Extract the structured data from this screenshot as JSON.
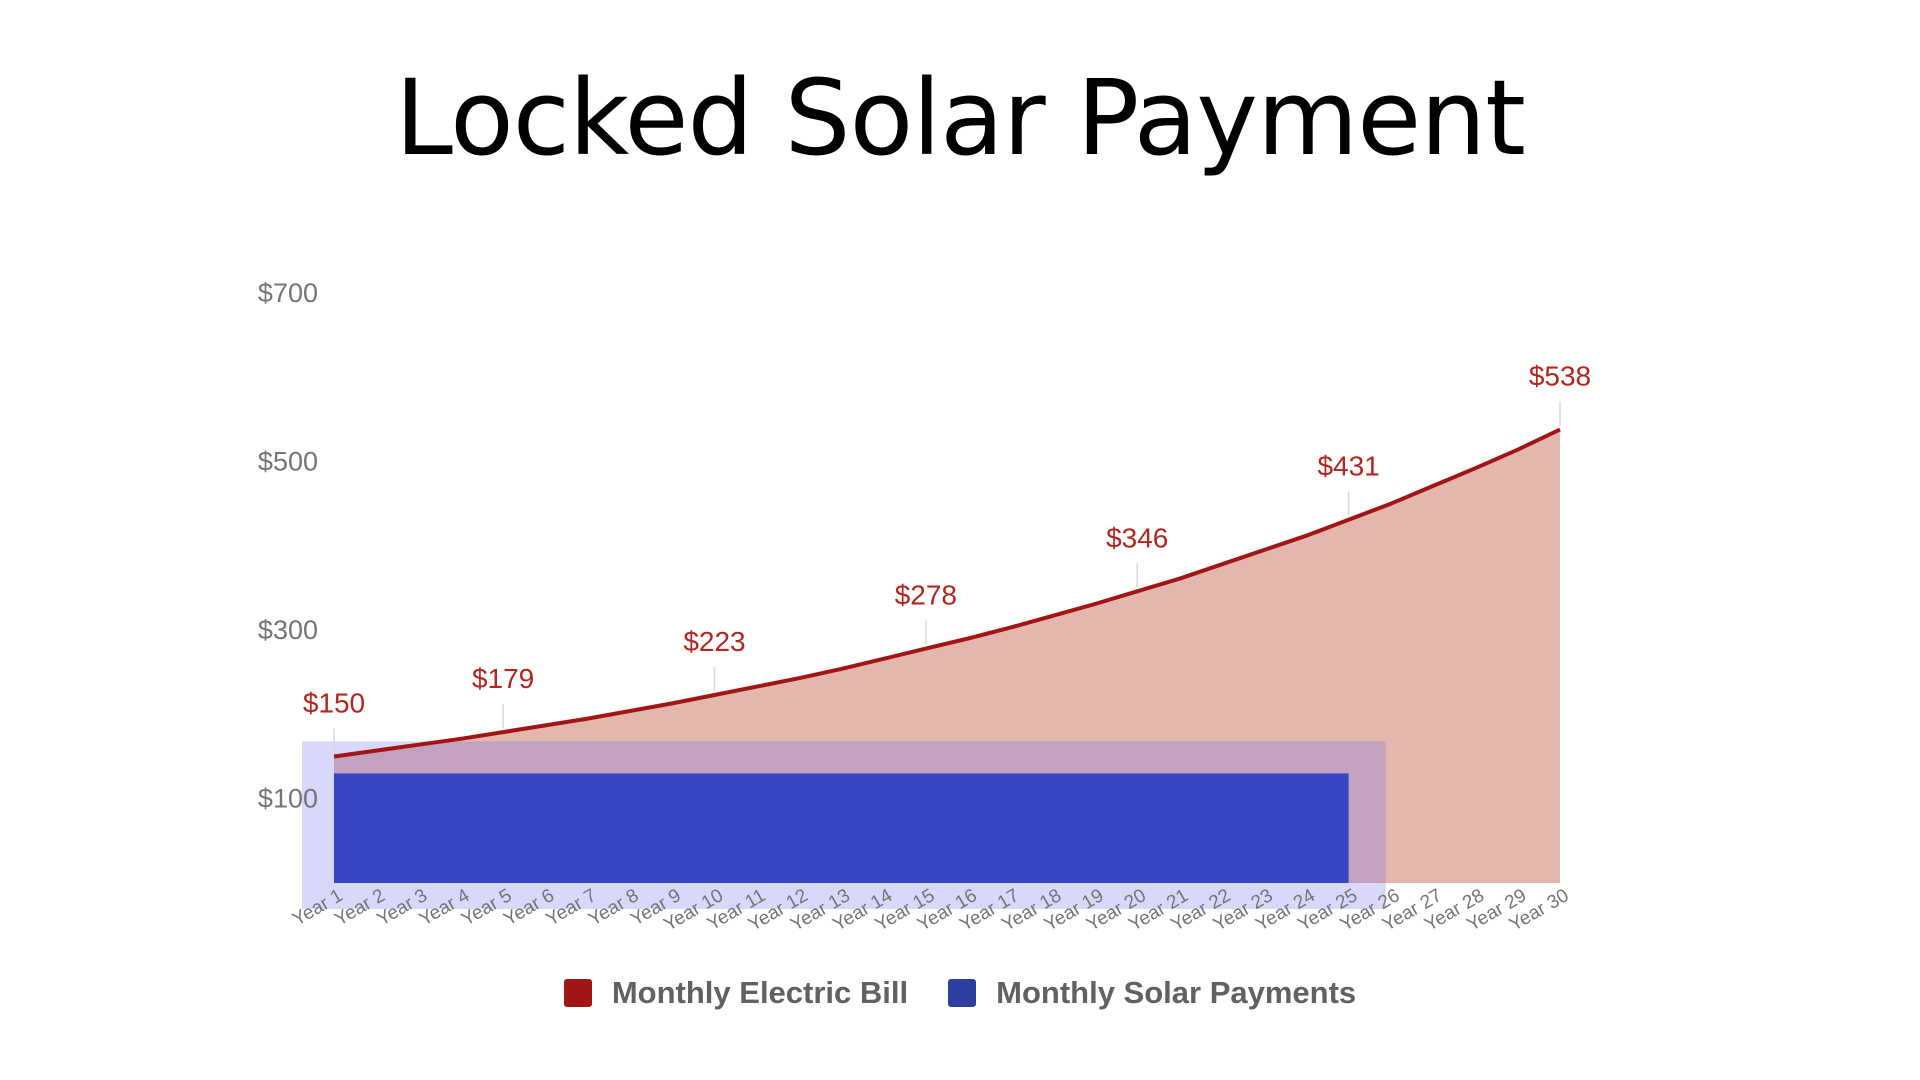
{
  "title": "Locked Solar Payment",
  "colors": {
    "electric": "#a31515",
    "electric_fill": "#e3b6ae",
    "solar": "#3747c3",
    "solar_legend": "#2f3f9e",
    "solar_box": "#b9b9f4",
    "solar_box_overlap": "#c09ccb",
    "label": "#b3261e",
    "axis_text": "#757575"
  },
  "legend": [
    {
      "label": "Monthly Electric Bill",
      "color": "#a31515"
    },
    {
      "label": "Monthly Solar Payments",
      "color": "#2f3f9e"
    }
  ],
  "chart_data": {
    "type": "area",
    "title": "Locked Solar Payment",
    "xlabel": "",
    "ylabel": "",
    "ylim": [
      0,
      700
    ],
    "y_ticks": [
      "$100",
      "$300",
      "$500",
      "$700"
    ],
    "y_tick_values": [
      100,
      300,
      500,
      700
    ],
    "categories": [
      "Year 1",
      "Year 2",
      "Year 3",
      "Year 4",
      "Year 5",
      "Year 6",
      "Year 7",
      "Year 8",
      "Year 9",
      "Year 10",
      "Year 11",
      "Year 12",
      "Year 13",
      "Year 14",
      "Year 15",
      "Year 16",
      "Year 17",
      "Year 18",
      "Year 19",
      "Year 20",
      "Year 21",
      "Year 22",
      "Year 23",
      "Year 24",
      "Year 25",
      "Year 26",
      "Year 27",
      "Year 28",
      "Year 29",
      "Year 30"
    ],
    "series": [
      {
        "name": "Monthly Electric Bill",
        "values": [
          150,
          157,
          164,
          171,
          179,
          187,
          195,
          204,
          213,
          223,
          233,
          243,
          254,
          266,
          278,
          290,
          303,
          317,
          331,
          346,
          361,
          378,
          395,
          412,
          431,
          450,
          471,
          492,
          514,
          538
        ],
        "labels": [
          {
            "index": 0,
            "text": "$150"
          },
          {
            "index": 4,
            "text": "$179"
          },
          {
            "index": 9,
            "text": "$223"
          },
          {
            "index": 14,
            "text": "$278"
          },
          {
            "index": 19,
            "text": "$346"
          },
          {
            "index": 24,
            "text": "$431"
          },
          {
            "index": 29,
            "text": "$538"
          }
        ]
      },
      {
        "name": "Monthly Solar Payments",
        "values": [
          130,
          130,
          130,
          130,
          130,
          130,
          130,
          130,
          130,
          130,
          130,
          130,
          130,
          130,
          130,
          130,
          130,
          130,
          130,
          130,
          130,
          130,
          130,
          130,
          130,
          null,
          null,
          null,
          null,
          null
        ],
        "highlight_box_value": 168
      }
    ],
    "grid": false,
    "legend_position": "bottom"
  }
}
